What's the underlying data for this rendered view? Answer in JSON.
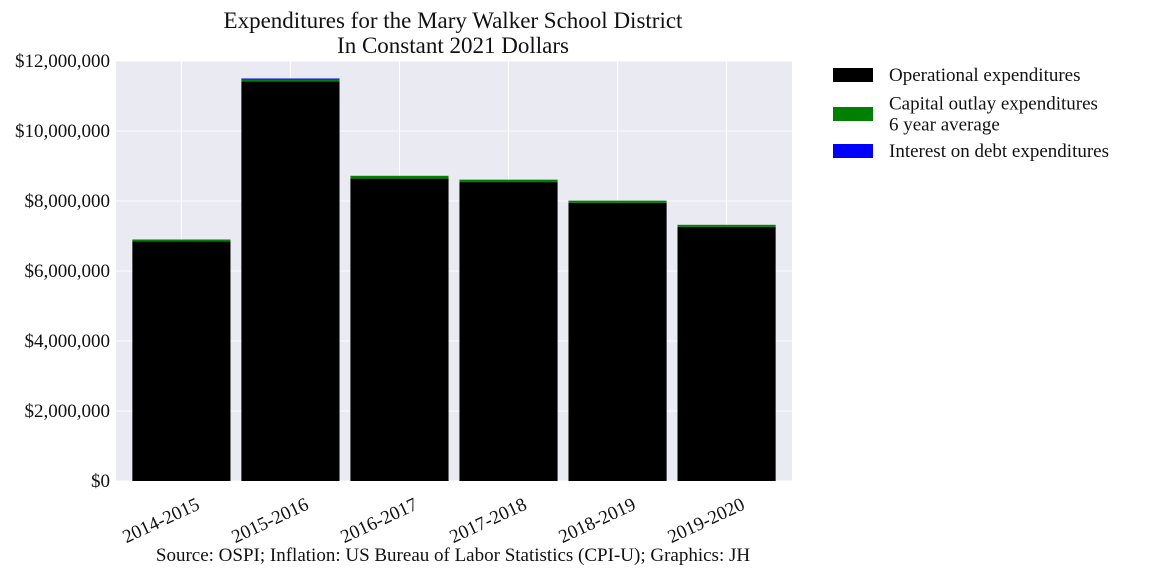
{
  "chart_data": {
    "type": "bar",
    "stacked": true,
    "title": "Expenditures for the Mary Walker School District",
    "subtitle": "In Constant 2021 Dollars",
    "xlabel": "",
    "ylabel": "",
    "categories": [
      "2014-2015",
      "2015-2016",
      "2016-2017",
      "2017-2018",
      "2018-2019",
      "2019-2020"
    ],
    "series": [
      {
        "name": "Operational expenditures",
        "color": "#000000",
        "values": [
          6850000,
          11420000,
          8640000,
          8540000,
          7950000,
          7260000
        ]
      },
      {
        "name": "Capital outlay expenditures\n6 year average",
        "color": "#008000",
        "values": [
          50000,
          50000,
          80000,
          70000,
          60000,
          60000
        ]
      },
      {
        "name": "Interest on debt expenditures",
        "color": "#0000ff",
        "values": [
          0,
          30000,
          0,
          0,
          0,
          0
        ]
      }
    ],
    "ylim": [
      0,
      12000000
    ],
    "yticks": [
      0,
      2000000,
      4000000,
      6000000,
      8000000,
      10000000,
      12000000
    ],
    "ytick_labels": [
      "$0",
      "$2,000,000",
      "$4,000,000",
      "$6,000,000",
      "$8,000,000",
      "$10,000,000",
      "$12,000,000"
    ],
    "grid": true,
    "background": "#eaeaf2",
    "legend_position": "outside-top-right",
    "source": "Source: OSPI; Inflation: US Bureau of Labor Statistics (CPI-U); Graphics: JH"
  }
}
